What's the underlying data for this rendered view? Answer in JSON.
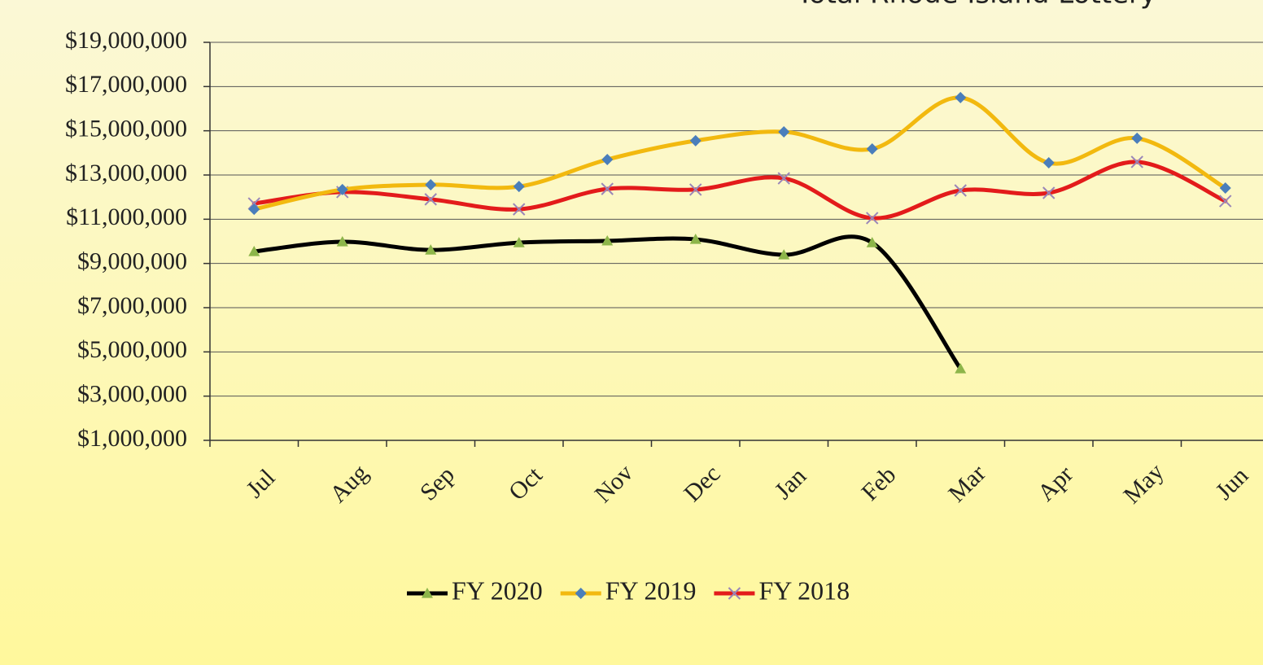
{
  "chart_data": {
    "type": "line",
    "title": "Total Rhode Island Lottery",
    "categories": [
      "Jul",
      "Aug",
      "Sep",
      "Oct",
      "Nov",
      "Dec",
      "Jan",
      "Feb",
      "Mar",
      "Apr",
      "May",
      "Jun"
    ],
    "series": [
      {
        "name": "FY 2020",
        "color": "#000000",
        "marker": "triangle",
        "marker_color": "#8db54a",
        "values": [
          9540000,
          9980000,
          9610000,
          9940000,
          10020000,
          10090000,
          9390000,
          9940000,
          4240000,
          null,
          null,
          null
        ]
      },
      {
        "name": "FY 2019",
        "color": "#f2b90f",
        "marker": "diamond",
        "marker_color": "#4a7ebb",
        "values": [
          11450000,
          12340000,
          12560000,
          12480000,
          13700000,
          14550000,
          14950000,
          14180000,
          16500000,
          13550000,
          14660000,
          12410000
        ]
      },
      {
        "name": "FY 2018",
        "color": "#e31b1b",
        "marker": "x",
        "marker_color": "#9a86b8",
        "values": [
          11710000,
          12230000,
          11900000,
          11450000,
          12370000,
          12340000,
          12850000,
          11050000,
          12300000,
          12190000,
          13590000,
          11820000
        ]
      }
    ],
    "ylim": [
      1000000,
      19000000
    ],
    "yticks": [
      {
        "value": 1000000,
        "label": "$1,000,000"
      },
      {
        "value": 3000000,
        "label": "$3,000,000"
      },
      {
        "value": 5000000,
        "label": "$5,000,000"
      },
      {
        "value": 7000000,
        "label": "$7,000,000"
      },
      {
        "value": 9000000,
        "label": "$9,000,000"
      },
      {
        "value": 11000000,
        "label": "$11,000,000"
      },
      {
        "value": 13000000,
        "label": "$13,000,000"
      },
      {
        "value": 15000000,
        "label": "$15,000,000"
      },
      {
        "value": 17000000,
        "label": "$17,000,000"
      },
      {
        "value": 19000000,
        "label": "$19,000,000"
      }
    ],
    "grid": true,
    "smooth": true,
    "legend": "bottom"
  }
}
